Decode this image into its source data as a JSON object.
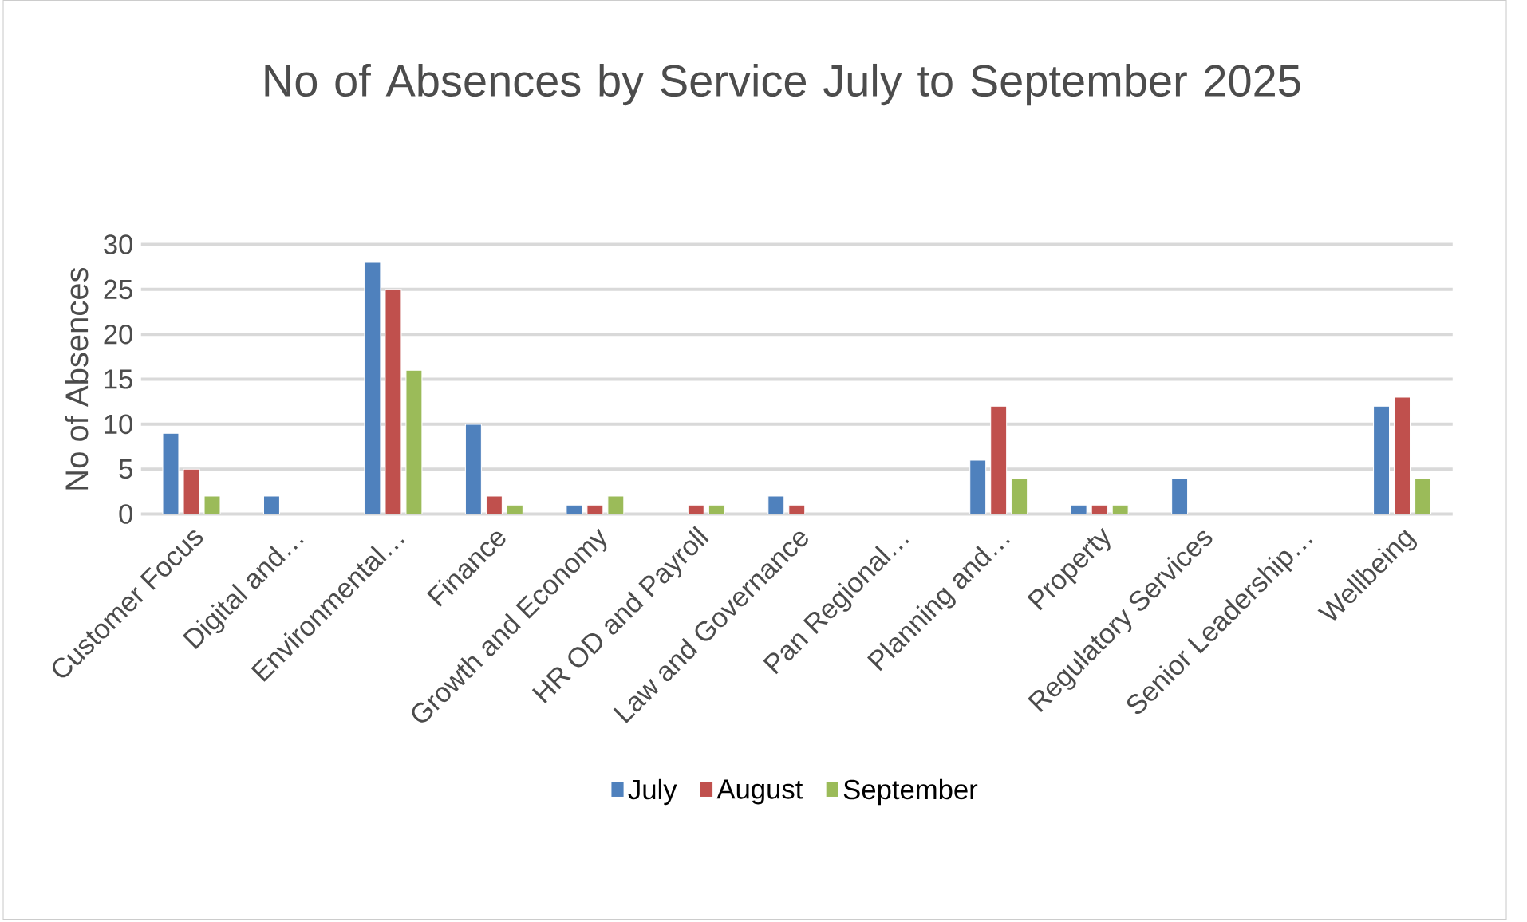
{
  "chart_data": {
    "type": "bar",
    "title": "No of Absences by Service July to September 2025",
    "ylabel": "No of Absences",
    "categories": [
      "Customer Focus",
      "Digital and…",
      "Environmental…",
      "Finance",
      "Growth and Economy",
      "HR OD and Payroll",
      "Law and Governance",
      "Pan Regional…",
      "Planning and…",
      "Property",
      "Regulatory Services",
      "Senior Leadership…",
      "Wellbeing"
    ],
    "series": [
      {
        "name": "July",
        "color": "#4f81bd",
        "values": [
          9,
          2,
          28,
          10,
          1,
          null,
          2,
          null,
          6,
          1,
          4,
          null,
          12
        ]
      },
      {
        "name": "August",
        "color": "#c0504d",
        "values": [
          5,
          null,
          25,
          2,
          1,
          1,
          1,
          null,
          12,
          1,
          null,
          null,
          13
        ]
      },
      {
        "name": "September",
        "color": "#9bbb59",
        "values": [
          2,
          null,
          16,
          1,
          2,
          1,
          null,
          null,
          4,
          1,
          null,
          null,
          4
        ]
      }
    ],
    "ylim": [
      0,
      30
    ],
    "yticks": [
      0,
      5,
      10,
      15,
      20,
      25,
      30
    ],
    "grid": "y",
    "legend": "bottom"
  }
}
